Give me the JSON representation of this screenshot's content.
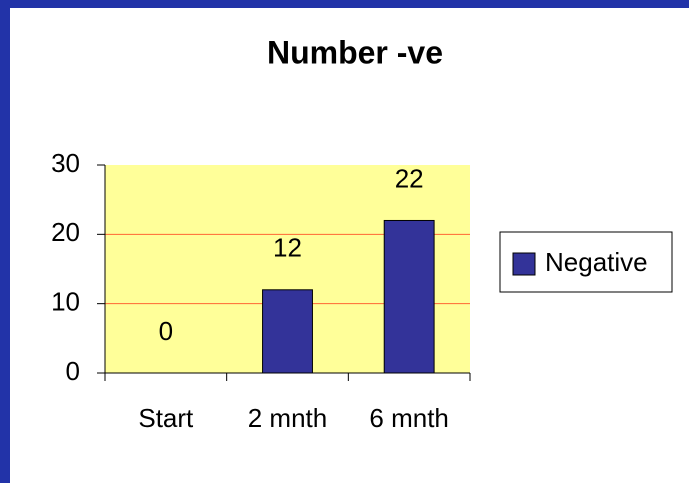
{
  "chart_data": {
    "type": "bar",
    "title": "Number -ve",
    "categories": [
      "Start",
      "2 mnth",
      "6 mnth"
    ],
    "series": [
      {
        "name": "Negative",
        "color": "#333399",
        "values": [
          0,
          12,
          22
        ]
      }
    ],
    "ylim": [
      0,
      30
    ],
    "yticks": [
      0,
      10,
      20,
      30
    ],
    "grid": true,
    "legend": "right"
  }
}
